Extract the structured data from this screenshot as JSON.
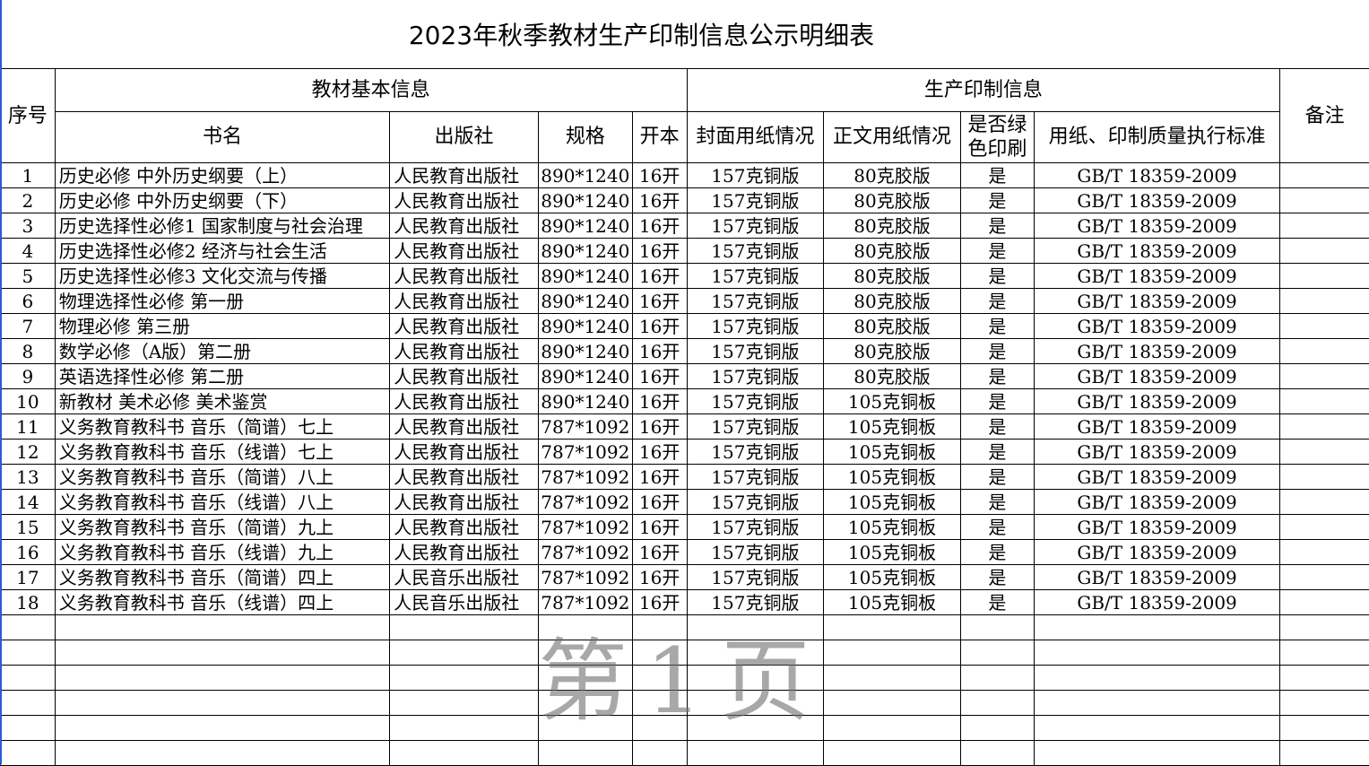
{
  "title": "2023年秋季教材生产印制信息公示明细表",
  "watermark": "第1页",
  "headers": {
    "seq": "序号",
    "group_basic": "教材基本信息",
    "group_print": "生产印制信息",
    "remark": "备注",
    "name": "书名",
    "publisher": "出版社",
    "spec": "规格",
    "format": "开本",
    "cover_paper": "封面用纸情况",
    "body_paper": "正文用纸情况",
    "green": "是否绿色印刷",
    "standard": "用纸、印制质量执行标准"
  },
  "rows": [
    [
      "1",
      "历史必修 中外历史纲要（上）",
      "人民教育出版社",
      "890*1240",
      "16开",
      "157克铜版",
      "80克胶版",
      "是",
      "GB/T 18359-2009",
      ""
    ],
    [
      "2",
      "历史必修 中外历史纲要（下）",
      "人民教育出版社",
      "890*1240",
      "16开",
      "157克铜版",
      "80克胶版",
      "是",
      "GB/T 18359-2009",
      ""
    ],
    [
      "3",
      "历史选择性必修1 国家制度与社会治理",
      "人民教育出版社",
      "890*1240",
      "16开",
      "157克铜版",
      "80克胶版",
      "是",
      "GB/T 18359-2009",
      ""
    ],
    [
      "4",
      "历史选择性必修2 经济与社会生活",
      "人民教育出版社",
      "890*1240",
      "16开",
      "157克铜版",
      "80克胶版",
      "是",
      "GB/T 18359-2009",
      ""
    ],
    [
      "5",
      "历史选择性必修3 文化交流与传播",
      "人民教育出版社",
      "890*1240",
      "16开",
      "157克铜版",
      "80克胶版",
      "是",
      "GB/T 18359-2009",
      ""
    ],
    [
      "6",
      "物理选择性必修 第一册",
      "人民教育出版社",
      "890*1240",
      "16开",
      "157克铜版",
      "80克胶版",
      "是",
      "GB/T 18359-2009",
      ""
    ],
    [
      "7",
      "物理必修 第三册",
      "人民教育出版社",
      "890*1240",
      "16开",
      "157克铜版",
      "80克胶版",
      "是",
      "GB/T 18359-2009",
      ""
    ],
    [
      "8",
      "数学必修（A版）第二册",
      "人民教育出版社",
      "890*1240",
      "16开",
      "157克铜版",
      "80克胶版",
      "是",
      "GB/T 18359-2009",
      ""
    ],
    [
      "9",
      "英语选择性必修 第二册",
      "人民教育出版社",
      "890*1240",
      "16开",
      "157克铜版",
      "80克胶版",
      "是",
      "GB/T 18359-2009",
      ""
    ],
    [
      "10",
      "新教材 美术必修 美术鉴赏",
      "人民教育出版社",
      "890*1240",
      "16开",
      "157克铜版",
      "105克铜板",
      "是",
      "GB/T 18359-2009",
      ""
    ],
    [
      "11",
      "义务教育教科书 音乐（简谱）七上",
      "人民教育出版社",
      "787*1092",
      "16开",
      "157克铜版",
      "105克铜板",
      "是",
      "GB/T 18359-2009",
      ""
    ],
    [
      "12",
      "义务教育教科书 音乐（线谱）七上",
      "人民教育出版社",
      "787*1092",
      "16开",
      "157克铜版",
      "105克铜板",
      "是",
      "GB/T 18359-2009",
      ""
    ],
    [
      "13",
      "义务教育教科书 音乐（简谱）八上",
      "人民教育出版社",
      "787*1092",
      "16开",
      "157克铜版",
      "105克铜板",
      "是",
      "GB/T 18359-2009",
      ""
    ],
    [
      "14",
      "义务教育教科书 音乐（线谱）八上",
      "人民教育出版社",
      "787*1092",
      "16开",
      "157克铜版",
      "105克铜板",
      "是",
      "GB/T 18359-2009",
      ""
    ],
    [
      "15",
      "义务教育教科书 音乐（简谱）九上",
      "人民教育出版社",
      "787*1092",
      "16开",
      "157克铜版",
      "105克铜板",
      "是",
      "GB/T 18359-2009",
      ""
    ],
    [
      "16",
      "义务教育教科书 音乐（线谱）九上",
      "人民教育出版社",
      "787*1092",
      "16开",
      "157克铜版",
      "105克铜板",
      "是",
      "GB/T 18359-2009",
      ""
    ],
    [
      "17",
      "义务教育教科书 音乐（简谱）四上",
      "人民音乐出版社",
      "787*1092",
      "16开",
      "157克铜版",
      "105克铜板",
      "是",
      "GB/T 18359-2009",
      ""
    ],
    [
      "18",
      "义务教育教科书 音乐（线谱）四上",
      "人民音乐出版社",
      "787*1092",
      "16开",
      "157克铜版",
      "105克铜板",
      "是",
      "GB/T 18359-2009",
      ""
    ]
  ]
}
